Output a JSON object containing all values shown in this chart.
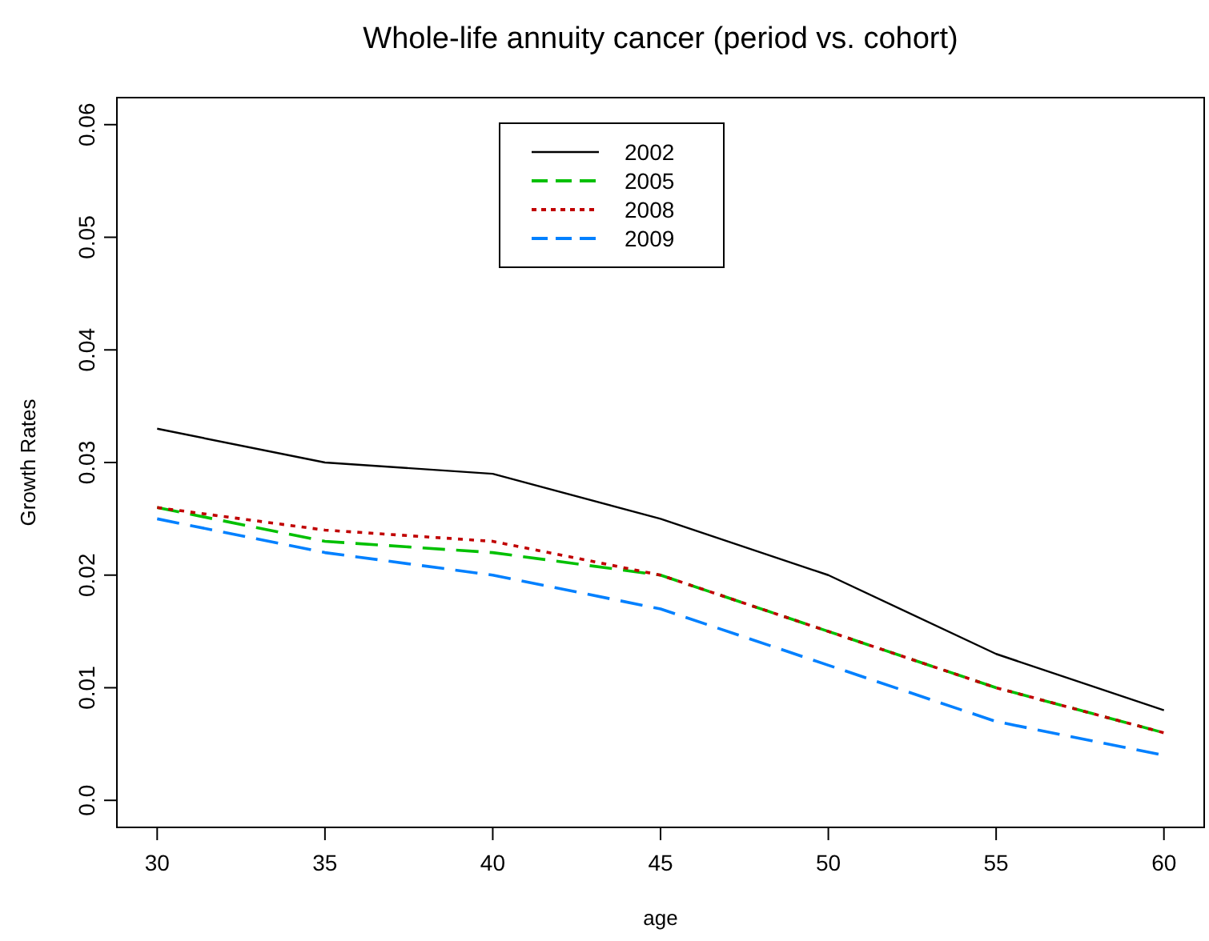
{
  "chart_data": {
    "type": "line",
    "title": "Whole-life annuity cancer (period vs. cohort)",
    "xlabel": "age",
    "ylabel": "Growth Rates",
    "x": [
      30,
      35,
      40,
      45,
      50,
      55,
      60
    ],
    "series": [
      {
        "name": "2002",
        "color": "#000000",
        "line_style": "solid",
        "values": [
          0.033,
          0.03,
          0.029,
          0.025,
          0.02,
          0.013,
          0.008
        ]
      },
      {
        "name": "2005",
        "color": "#00c000",
        "line_style": "dashed",
        "values": [
          0.026,
          0.023,
          0.022,
          0.02,
          0.015,
          0.01,
          0.006
        ]
      },
      {
        "name": "2008",
        "color": "#c00000",
        "line_style": "dotted",
        "values": [
          0.026,
          0.024,
          0.023,
          0.02,
          0.015,
          0.01,
          0.006
        ]
      },
      {
        "name": "2009",
        "color": "#0080ff",
        "line_style": "dashed",
        "values": [
          0.025,
          0.022,
          0.02,
          0.017,
          0.012,
          0.007,
          0.004
        ]
      }
    ],
    "xlim": [
      28.8,
      61.2
    ],
    "xticks": [
      30,
      35,
      40,
      45,
      50,
      55,
      60
    ],
    "ylim": [
      -0.0024,
      0.0624
    ],
    "yticks": [
      {
        "value": 0,
        "label": "0.0"
      },
      0.01,
      0.02,
      0.03,
      0.04,
      0.05,
      0.06
    ],
    "grid": false,
    "legend": "top",
    "marker": "none"
  }
}
